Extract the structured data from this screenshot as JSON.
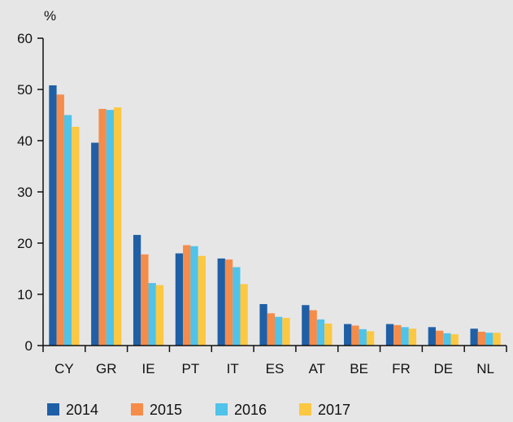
{
  "chart_data": {
    "type": "bar",
    "unit_label": "%",
    "categories": [
      "CY",
      "GR",
      "IE",
      "PT",
      "IT",
      "ES",
      "AT",
      "BE",
      "FR",
      "DE",
      "NL"
    ],
    "series": [
      {
        "name": "2014",
        "color": "#1f5fa6",
        "values": [
          50.8,
          39.6,
          21.6,
          18.0,
          17.0,
          8.1,
          7.9,
          4.2,
          4.2,
          3.6,
          3.3
        ]
      },
      {
        "name": "2015",
        "color": "#f58c4a",
        "values": [
          49.0,
          46.2,
          17.8,
          19.6,
          16.8,
          6.3,
          6.9,
          3.9,
          4.0,
          2.9,
          2.7
        ]
      },
      {
        "name": "2016",
        "color": "#4fc3ea",
        "values": [
          45.0,
          46.0,
          12.2,
          19.4,
          15.3,
          5.6,
          5.1,
          3.2,
          3.6,
          2.4,
          2.5
        ]
      },
      {
        "name": "2017",
        "color": "#fcc842",
        "values": [
          42.7,
          46.5,
          11.8,
          17.5,
          12.0,
          5.4,
          4.3,
          2.8,
          3.3,
          2.2,
          2.5
        ]
      }
    ],
    "y_ticks": [
      "0",
      "10",
      "20",
      "30",
      "40",
      "50",
      "60"
    ],
    "ylim": [
      0,
      60
    ],
    "grid": false,
    "legend_position": "bottom-left"
  }
}
